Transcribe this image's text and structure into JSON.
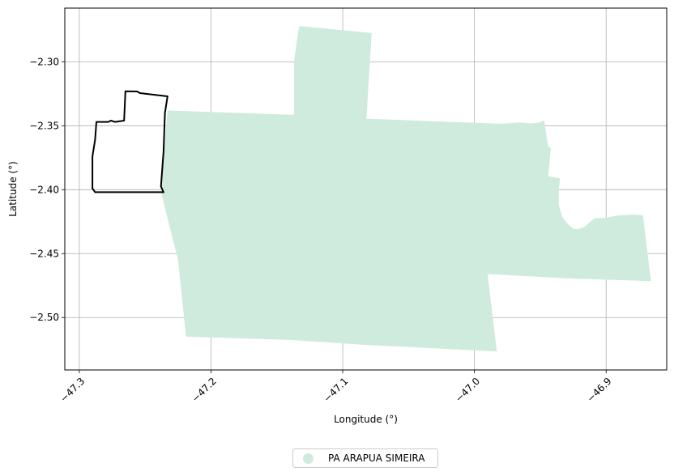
{
  "chart_data": {
    "type": "map",
    "xlabel": "Longitude (°)",
    "ylabel": "Latitude (°)",
    "xlim": [
      -47.311,
      -46.854
    ],
    "ylim": [
      -2.541,
      -2.258
    ],
    "xticks": [
      -47.3,
      -47.2,
      -47.1,
      -47.0,
      -46.9
    ],
    "xtick_labels": [
      "−47.3",
      "−47.2",
      "−47.1",
      "−47.0",
      "−46.9"
    ],
    "yticks": [
      -2.3,
      -2.35,
      -2.4,
      -2.45,
      -2.5
    ],
    "ytick_labels": [
      "−2.30",
      "−2.35",
      "−2.40",
      "−2.45",
      "−2.50"
    ],
    "grid": true,
    "legend_position": "bottom-center",
    "colors": {
      "fill": "#cfebdd",
      "outline": "#000000",
      "grid": "#b0b0b0"
    },
    "layers": [
      {
        "name": "PA ARAPUA SIMEIRA",
        "kind": "filled-polygon",
        "coords": [
          [
            -47.133,
            -2.272
          ],
          [
            -47.078,
            -2.2775
          ],
          [
            -47.082,
            -2.3445
          ],
          [
            -46.98,
            -2.3485
          ],
          [
            -46.966,
            -2.3475
          ],
          [
            -46.957,
            -2.3482
          ],
          [
            -46.951,
            -2.3475
          ],
          [
            -46.947,
            -2.346
          ],
          [
            -46.944,
            -2.3665
          ],
          [
            -46.942,
            -2.3675
          ],
          [
            -46.944,
            -2.3895
          ],
          [
            -46.935,
            -2.391
          ],
          [
            -46.936,
            -2.4
          ],
          [
            -46.936,
            -2.412
          ],
          [
            -46.933,
            -2.422
          ],
          [
            -46.928,
            -2.428
          ],
          [
            -46.925,
            -2.4305
          ],
          [
            -46.922,
            -2.431
          ],
          [
            -46.917,
            -2.4295
          ],
          [
            -46.913,
            -2.426
          ],
          [
            -46.909,
            -2.4225
          ],
          [
            -46.9,
            -2.422
          ],
          [
            -46.89,
            -2.42
          ],
          [
            -46.878,
            -2.4195
          ],
          [
            -46.872,
            -2.42
          ],
          [
            -46.866,
            -2.4715
          ],
          [
            -46.926,
            -2.4695
          ],
          [
            -46.99,
            -2.466
          ],
          [
            -46.983,
            -2.5265
          ],
          [
            -47.081,
            -2.5215
          ],
          [
            -47.14,
            -2.5175
          ],
          [
            -47.219,
            -2.515
          ],
          [
            -47.225,
            -2.455
          ],
          [
            -47.238,
            -2.402
          ],
          [
            -47.233,
            -2.338
          ],
          [
            -47.137,
            -2.3415
          ],
          [
            -47.137,
            -2.3
          ],
          [
            -47.135,
            -2.285
          ]
        ]
      },
      {
        "name": "",
        "kind": "outline-polygon",
        "coords": [
          [
            -47.265,
            -2.323
          ],
          [
            -47.256,
            -2.3232
          ],
          [
            -47.254,
            -2.3245
          ],
          [
            -47.233,
            -2.327
          ],
          [
            -47.235,
            -2.34
          ],
          [
            -47.236,
            -2.37
          ],
          [
            -47.238,
            -2.3975
          ],
          [
            -47.236,
            -2.402
          ],
          [
            -47.288,
            -2.402
          ],
          [
            -47.29,
            -2.399
          ],
          [
            -47.29,
            -2.374
          ],
          [
            -47.288,
            -2.361
          ],
          [
            -47.287,
            -2.347
          ],
          [
            -47.278,
            -2.347
          ],
          [
            -47.276,
            -2.346
          ],
          [
            -47.273,
            -2.347
          ],
          [
            -47.266,
            -2.346
          ]
        ]
      }
    ]
  },
  "legend": {
    "items": [
      {
        "label": "PA ARAPUA SIMEIRA",
        "color": "#cfebdd"
      }
    ]
  }
}
